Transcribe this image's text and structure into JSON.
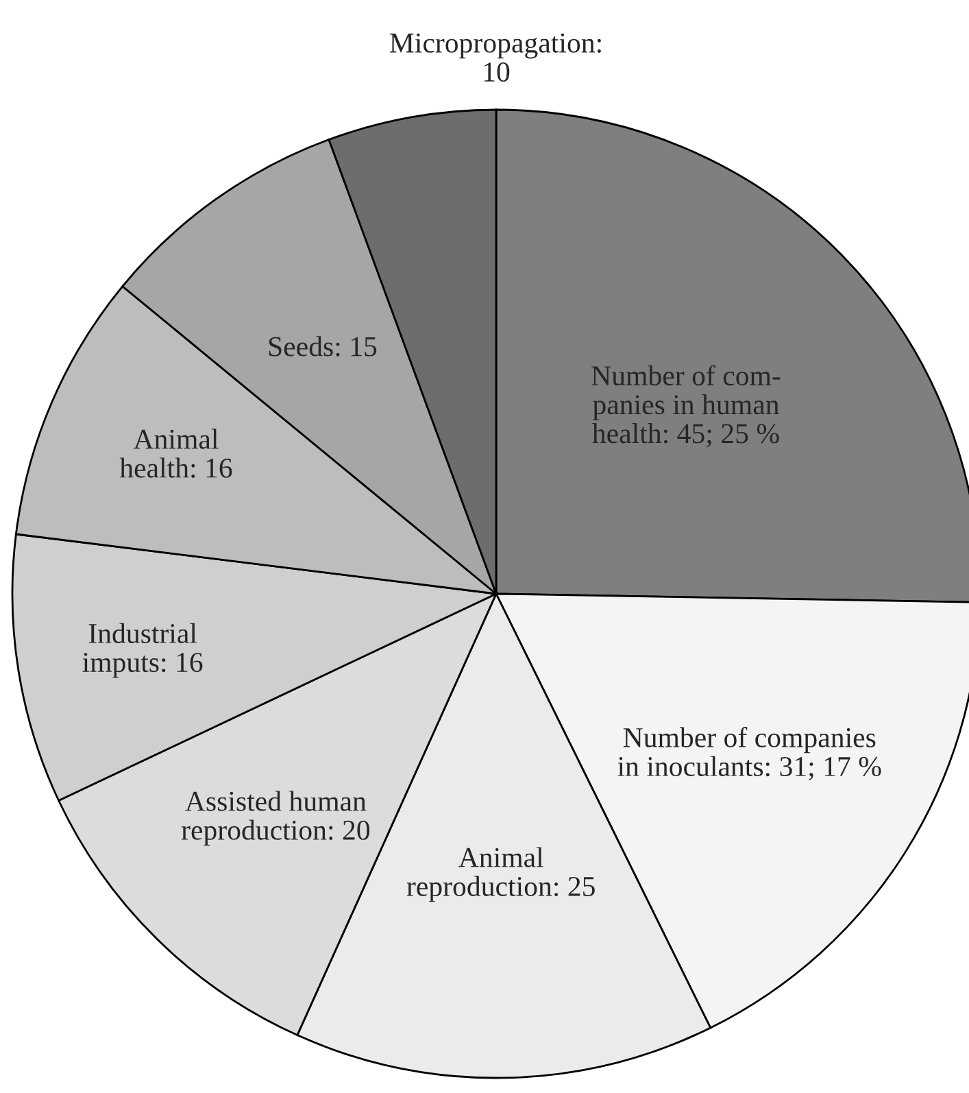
{
  "chart_data": {
    "type": "pie",
    "categories": [
      "Number of com-\npanies in human\nhealth: 45; 25 %",
      "Number of companies\nin inoculants: 31; 17 %",
      "Animal\nreproduction: 25",
      "Assisted human\nreproduction: 20",
      "Industrial\nimputs: 16",
      "Animal\nhealth: 16",
      "Seeds: 15",
      "Micropropagation:\n10"
    ],
    "values": [
      45,
      31,
      25,
      20,
      16,
      16,
      15,
      10
    ],
    "colors": [
      "#7f7f7f",
      "#f4f4f4",
      "#ebebeb",
      "#dcdcdc",
      "#cfcfcf",
      "#bdbdbd",
      "#a6a6a6",
      "#6d6d6d"
    ]
  }
}
